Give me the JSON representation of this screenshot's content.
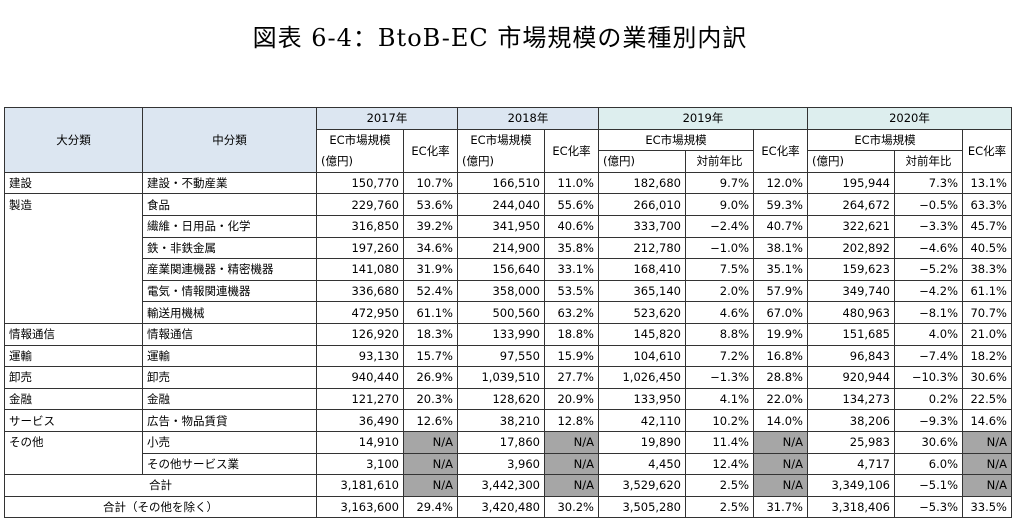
{
  "title": "図表 6-4：BtoB-EC 市場規模の業種別内訳",
  "headers": {
    "major": "大分類",
    "minor": "中分類",
    "years": [
      "2017年",
      "2018年",
      "2019年",
      "2020年"
    ],
    "ec_size": "EC市場規模",
    "ec_rate": "EC化率",
    "unit": "(億円)",
    "yoy": "対前年比"
  },
  "rows": [
    {
      "major": "建設",
      "minor": "建設・不動産業",
      "v2017": "150,770",
      "r2017": "10.7%",
      "v2018": "166,510",
      "r2018": "11.0%",
      "v2019": "182,680",
      "y2019": "9.7%",
      "r2019": "12.0%",
      "v2020": "195,944",
      "y2020": "7.3%",
      "r2020": "13.1%"
    },
    {
      "major": "製造",
      "minor": "食品",
      "v2017": "229,760",
      "r2017": "53.6%",
      "v2018": "244,040",
      "r2018": "55.6%",
      "v2019": "266,010",
      "y2019": "9.0%",
      "r2019": "59.3%",
      "v2020": "264,672",
      "y2020": "−0.5%",
      "r2020": "63.3%"
    },
    {
      "major": "",
      "minor": "繊維・日用品・化学",
      "v2017": "316,850",
      "r2017": "39.2%",
      "v2018": "341,950",
      "r2018": "40.6%",
      "v2019": "333,700",
      "y2019": "−2.4%",
      "r2019": "40.7%",
      "v2020": "322,621",
      "y2020": "−3.3%",
      "r2020": "45.7%"
    },
    {
      "major": "",
      "minor": "鉄・非鉄金属",
      "v2017": "197,260",
      "r2017": "34.6%",
      "v2018": "214,900",
      "r2018": "35.8%",
      "v2019": "212,780",
      "y2019": "−1.0%",
      "r2019": "38.1%",
      "v2020": "202,892",
      "y2020": "−4.6%",
      "r2020": "40.5%"
    },
    {
      "major": "",
      "minor": "産業関連機器・精密機器",
      "v2017": "141,080",
      "r2017": "31.9%",
      "v2018": "156,640",
      "r2018": "33.1%",
      "v2019": "168,410",
      "y2019": "7.5%",
      "r2019": "35.1%",
      "v2020": "159,623",
      "y2020": "−5.2%",
      "r2020": "38.3%"
    },
    {
      "major": "",
      "minor": "電気・情報関連機器",
      "v2017": "336,680",
      "r2017": "52.4%",
      "v2018": "358,000",
      "r2018": "53.5%",
      "v2019": "365,140",
      "y2019": "2.0%",
      "r2019": "57.9%",
      "v2020": "349,740",
      "y2020": "−4.2%",
      "r2020": "61.1%"
    },
    {
      "major": "",
      "minor": "輸送用機械",
      "v2017": "472,950",
      "r2017": "61.1%",
      "v2018": "500,560",
      "r2018": "63.2%",
      "v2019": "523,620",
      "y2019": "4.6%",
      "r2019": "67.0%",
      "v2020": "480,963",
      "y2020": "−8.1%",
      "r2020": "70.7%"
    },
    {
      "major": "情報通信",
      "minor": "情報通信",
      "v2017": "126,920",
      "r2017": "18.3%",
      "v2018": "133,990",
      "r2018": "18.8%",
      "v2019": "145,820",
      "y2019": "8.8%",
      "r2019": "19.9%",
      "v2020": "151,685",
      "y2020": "4.0%",
      "r2020": "21.0%"
    },
    {
      "major": "運輸",
      "minor": "運輸",
      "v2017": "93,130",
      "r2017": "15.7%",
      "v2018": "97,550",
      "r2018": "15.9%",
      "v2019": "104,610",
      "y2019": "7.2%",
      "r2019": "16.8%",
      "v2020": "96,843",
      "y2020": "−7.4%",
      "r2020": "18.2%"
    },
    {
      "major": "卸売",
      "minor": "卸売",
      "v2017": "940,440",
      "r2017": "26.9%",
      "v2018": "1,039,510",
      "r2018": "27.7%",
      "v2019": "1,026,450",
      "y2019": "−1.3%",
      "r2019": "28.8%",
      "v2020": "920,944",
      "y2020": "−10.3%",
      "r2020": "30.6%"
    },
    {
      "major": "金融",
      "minor": "金融",
      "v2017": "121,270",
      "r2017": "20.3%",
      "v2018": "128,620",
      "r2018": "20.9%",
      "v2019": "133,950",
      "y2019": "4.1%",
      "r2019": "22.0%",
      "v2020": "134,273",
      "y2020": "0.2%",
      "r2020": "22.5%"
    },
    {
      "major": "サービス",
      "minor": "広告・物品賃貸",
      "v2017": "36,490",
      "r2017": "12.6%",
      "v2018": "38,210",
      "r2018": "12.8%",
      "v2019": "42,110",
      "y2019": "10.2%",
      "r2019": "14.0%",
      "v2020": "38,206",
      "y2020": "−9.3%",
      "r2020": "14.6%"
    },
    {
      "major": "その他",
      "minor": "小売",
      "v2017": "14,910",
      "r2017": "N/A",
      "v2018": "17,860",
      "r2018": "N/A",
      "v2019": "19,890",
      "y2019": "11.4%",
      "r2019": "N/A",
      "v2020": "25,983",
      "y2020": "30.6%",
      "r2020": "N/A"
    },
    {
      "major": "",
      "minor": "その他サービス業",
      "v2017": "3,100",
      "r2017": "N/A",
      "v2018": "3,960",
      "r2018": "N/A",
      "v2019": "4,450",
      "y2019": "12.4%",
      "r2019": "N/A",
      "v2020": "4,717",
      "y2020": "6.0%",
      "r2020": "N/A"
    }
  ],
  "total": {
    "label": "合計",
    "v2017": "3,181,610",
    "r2017": "N/A",
    "v2018": "3,442,300",
    "r2018": "N/A",
    "v2019": "3,529,620",
    "y2019": "2.5%",
    "r2019": "N/A",
    "v2020": "3,349,106",
    "y2020": "−5.1%",
    "r2020": "N/A"
  },
  "total_ex": {
    "label": "合計（その他を除く）",
    "v2017": "3,163,600",
    "r2017": "29.4%",
    "v2018": "3,420,480",
    "r2018": "30.2%",
    "v2019": "3,505,280",
    "y2019": "2.5%",
    "r2019": "31.7%",
    "v2020": "3,318,406",
    "y2020": "−5.3%",
    "r2020": "33.5%"
  }
}
